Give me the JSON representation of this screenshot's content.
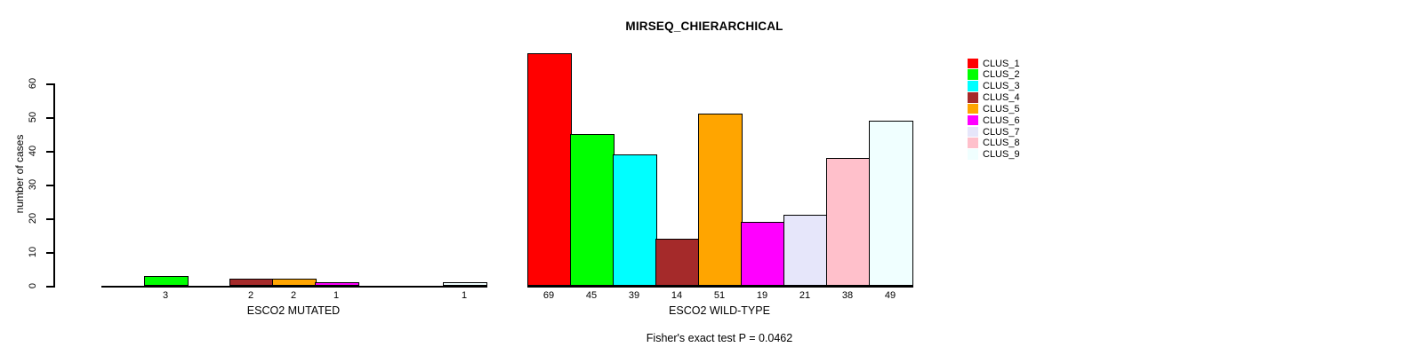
{
  "chart_data": {
    "type": "bar",
    "title": "MIRSEQ_CHIERARCHICAL",
    "ylabel": "number of cases",
    "xlabel": "",
    "ylim": [
      0,
      60
    ],
    "yticks": [
      0,
      10,
      20,
      30,
      40,
      50,
      60
    ],
    "grid": false,
    "legend_position": "right",
    "series": [
      "CLUS_1",
      "CLUS_2",
      "CLUS_3",
      "CLUS_4",
      "CLUS_5",
      "CLUS_6",
      "CLUS_7",
      "CLUS_8",
      "CLUS_9"
    ],
    "series_colors": [
      "#FF0000",
      "#00FF00",
      "#00FFFF",
      "#A52A2A",
      "#FFA500",
      "#FF00FF",
      "#E6E6FA",
      "#FFC0CB",
      "#F0FFFF"
    ],
    "groups": [
      {
        "label": "ESCO2 MUTATED",
        "values": [
          0,
          3,
          0,
          2,
          2,
          1,
          0,
          0,
          1
        ]
      },
      {
        "label": "ESCO2 WILD-TYPE",
        "values": [
          69,
          45,
          39,
          14,
          51,
          19,
          21,
          38,
          49
        ]
      }
    ],
    "show_zero_value_labels": false,
    "annotation": "Fisher's exact test P = 0.0462"
  },
  "legend": {
    "items": [
      {
        "label": "CLUS_1",
        "color": "#FF0000"
      },
      {
        "label": "CLUS_2",
        "color": "#00FF00"
      },
      {
        "label": "CLUS_3",
        "color": "#00FFFF"
      },
      {
        "label": "CLUS_4",
        "color": "#A52A2A"
      },
      {
        "label": "CLUS_5",
        "color": "#FFA500"
      },
      {
        "label": "CLUS_6",
        "color": "#FF00FF"
      },
      {
        "label": "CLUS_7",
        "color": "#E6E6FA"
      },
      {
        "label": "CLUS_8",
        "color": "#FFC0CB"
      },
      {
        "label": "CLUS_9",
        "color": "#F0FFFF"
      }
    ]
  }
}
